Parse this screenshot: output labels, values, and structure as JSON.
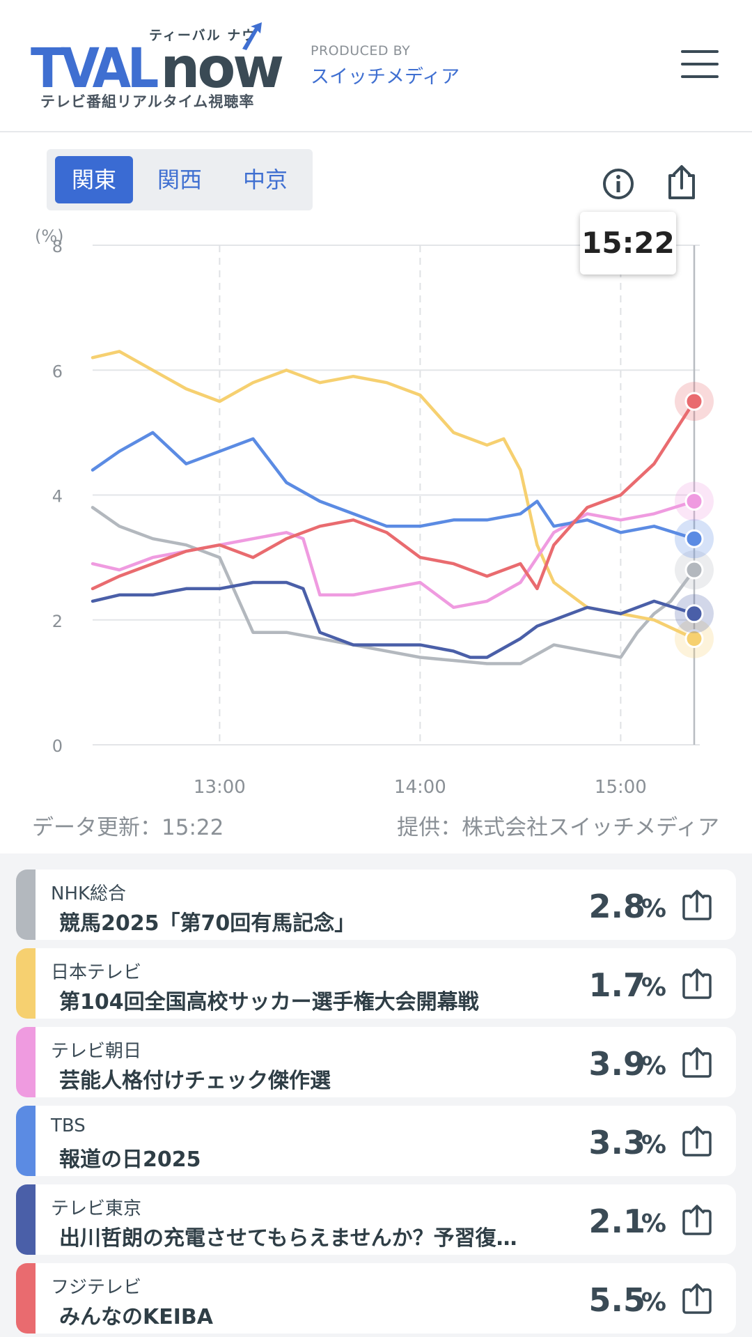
{
  "header": {
    "logo_main": "TVAL",
    "logo_now": "now",
    "logo_kana": "ティーバル ナウ",
    "logo_sub": "テレビ番組リアルタイム視聴率",
    "produced_label": "PRODUCED BY",
    "produced_name": "スイッチメディア",
    "menu_icon": "hamburger-menu-icon"
  },
  "region_tabs": [
    {
      "label": "関東",
      "active": true
    },
    {
      "label": "関西",
      "active": false
    },
    {
      "label": "中京",
      "active": false
    }
  ],
  "toolbar": {
    "info_icon": "info-icon",
    "share_icon": "share-icon"
  },
  "current_time": "15:22",
  "footer": {
    "updated": "データ更新：15:22",
    "provided": "提供：株式会社スイッチメディア"
  },
  "chart_data": {
    "type": "line",
    "ylabel": "(%)",
    "ylim": [
      0,
      8
    ],
    "yticks": [
      "0",
      "2",
      "4",
      "6",
      "8"
    ],
    "xticks": [
      "13:00",
      "14:00",
      "15:00"
    ],
    "xlim": [
      "12:22",
      "15:22"
    ],
    "grid": true,
    "series": [
      {
        "name": "NHK総合",
        "color": "#b3b8be",
        "x": [
          "12:22",
          "12:30",
          "12:40",
          "12:50",
          "13:00",
          "13:05",
          "13:10",
          "13:20",
          "13:30",
          "13:40",
          "13:50",
          "14:00",
          "14:10",
          "14:20",
          "14:30",
          "14:40",
          "14:50",
          "15:00",
          "15:05",
          "15:10",
          "15:15",
          "15:22"
        ],
        "y": [
          3.8,
          3.5,
          3.3,
          3.2,
          3.0,
          2.4,
          1.8,
          1.8,
          1.7,
          1.6,
          1.5,
          1.4,
          1.35,
          1.3,
          1.3,
          1.6,
          1.5,
          1.4,
          1.8,
          2.1,
          2.3,
          2.8
        ]
      },
      {
        "name": "日本テレビ",
        "color": "#f6d070",
        "x": [
          "12:22",
          "12:30",
          "12:40",
          "12:50",
          "13:00",
          "13:10",
          "13:20",
          "13:30",
          "13:40",
          "13:50",
          "14:00",
          "14:10",
          "14:20",
          "14:25",
          "14:30",
          "14:35",
          "14:40",
          "14:50",
          "15:00",
          "15:10",
          "15:22"
        ],
        "y": [
          6.2,
          6.3,
          6.0,
          5.7,
          5.5,
          5.8,
          6.0,
          5.8,
          5.9,
          5.8,
          5.6,
          5.0,
          4.8,
          4.9,
          4.4,
          3.2,
          2.6,
          2.2,
          2.1,
          2.0,
          1.7
        ]
      },
      {
        "name": "テレビ朝日",
        "color": "#ef9be0",
        "x": [
          "12:22",
          "12:30",
          "12:40",
          "12:50",
          "13:00",
          "13:10",
          "13:20",
          "13:25",
          "13:30",
          "13:40",
          "13:50",
          "14:00",
          "14:10",
          "14:20",
          "14:30",
          "14:40",
          "14:50",
          "15:00",
          "15:10",
          "15:22"
        ],
        "y": [
          2.9,
          2.8,
          3.0,
          3.1,
          3.2,
          3.3,
          3.4,
          3.3,
          2.4,
          2.4,
          2.5,
          2.6,
          2.2,
          2.3,
          2.6,
          3.4,
          3.7,
          3.6,
          3.7,
          3.9
        ]
      },
      {
        "name": "TBS",
        "color": "#5b8be3",
        "x": [
          "12:22",
          "12:30",
          "12:40",
          "12:50",
          "13:00",
          "13:10",
          "13:20",
          "13:30",
          "13:40",
          "13:50",
          "14:00",
          "14:10",
          "14:20",
          "14:30",
          "14:35",
          "14:40",
          "14:50",
          "15:00",
          "15:10",
          "15:22"
        ],
        "y": [
          4.4,
          4.7,
          5.0,
          4.5,
          4.7,
          4.9,
          4.2,
          3.9,
          3.7,
          3.5,
          3.5,
          3.6,
          3.6,
          3.7,
          3.9,
          3.5,
          3.6,
          3.4,
          3.5,
          3.3
        ]
      },
      {
        "name": "テレビ東京",
        "color": "#4a5fa8",
        "x": [
          "12:22",
          "12:30",
          "12:40",
          "12:50",
          "13:00",
          "13:10",
          "13:20",
          "13:25",
          "13:30",
          "13:40",
          "13:50",
          "14:00",
          "14:10",
          "14:15",
          "14:20",
          "14:30",
          "14:35",
          "14:40",
          "14:50",
          "15:00",
          "15:10",
          "15:22"
        ],
        "y": [
          2.3,
          2.4,
          2.4,
          2.5,
          2.5,
          2.6,
          2.6,
          2.5,
          1.8,
          1.6,
          1.6,
          1.6,
          1.5,
          1.4,
          1.4,
          1.7,
          1.9,
          2.0,
          2.2,
          2.1,
          2.3,
          2.1
        ]
      },
      {
        "name": "フジテレビ",
        "color": "#e96b6f",
        "x": [
          "12:22",
          "12:30",
          "12:40",
          "12:50",
          "13:00",
          "13:10",
          "13:20",
          "13:30",
          "13:40",
          "13:50",
          "14:00",
          "14:10",
          "14:20",
          "14:30",
          "14:35",
          "14:40",
          "14:50",
          "15:00",
          "15:10",
          "15:22"
        ],
        "y": [
          2.5,
          2.7,
          2.9,
          3.1,
          3.2,
          3.0,
          3.3,
          3.5,
          3.6,
          3.4,
          3.0,
          2.9,
          2.7,
          2.9,
          2.5,
          3.2,
          3.8,
          4.0,
          4.5,
          5.5
        ]
      }
    ]
  },
  "programs": [
    {
      "channel": "NHK総合",
      "title": "競馬2025「第70回有馬記念」",
      "value": "2.8",
      "unit": "%",
      "color": "#b3b8be"
    },
    {
      "channel": "日本テレビ",
      "title": "第104回全国高校サッカー選手権大会開幕戦",
      "value": "1.7",
      "unit": "%",
      "color": "#f6d070"
    },
    {
      "channel": "テレビ朝日",
      "title": "芸能人格付けチェック傑作選",
      "value": "3.9",
      "unit": "%",
      "color": "#ef9be0"
    },
    {
      "channel": "TBS",
      "title": "報道の日2025",
      "value": "3.3",
      "unit": "%",
      "color": "#5b8be3"
    },
    {
      "channel": "テレビ東京",
      "title": "出川哲朗の充電させてもらえませんか？予習復…",
      "value": "2.1",
      "unit": "%",
      "color": "#4a5fa8"
    },
    {
      "channel": "フジテレビ",
      "title": "みんなのKEIBA",
      "value": "5.5",
      "unit": "%",
      "color": "#e96b6f"
    }
  ]
}
